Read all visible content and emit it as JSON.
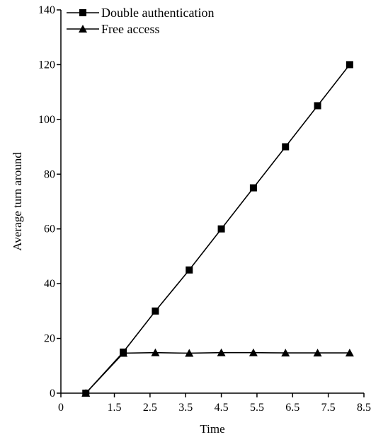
{
  "chart_data": {
    "type": "line",
    "title": "",
    "xlabel": "Time",
    "ylabel": "Average turn around",
    "xlim": [
      0,
      8.5
    ],
    "ylim": [
      0,
      140
    ],
    "x_ticks": [
      0,
      1.5,
      2.5,
      3.5,
      4.5,
      5.5,
      6.5,
      7.5,
      8.5
    ],
    "y_ticks": [
      0,
      20,
      40,
      60,
      80,
      100,
      120,
      140
    ],
    "grid": false,
    "legend_position": "top-left",
    "series": [
      {
        "name": "Double authentication",
        "marker": "square",
        "color": "#000000",
        "x": [
          0.7,
          1.75,
          2.65,
          3.6,
          4.5,
          5.4,
          6.3,
          7.2,
          8.1
        ],
        "y": [
          0,
          15,
          30,
          45,
          60,
          75,
          90,
          105,
          120
        ]
      },
      {
        "name": "Free access",
        "marker": "triangle",
        "color": "#000000",
        "x": [
          0.7,
          1.75,
          2.65,
          3.6,
          4.5,
          5.4,
          6.3,
          7.2,
          8.1
        ],
        "y": [
          0,
          14.6,
          14.8,
          14.6,
          14.8,
          14.8,
          14.7,
          14.7,
          14.7
        ]
      }
    ]
  }
}
